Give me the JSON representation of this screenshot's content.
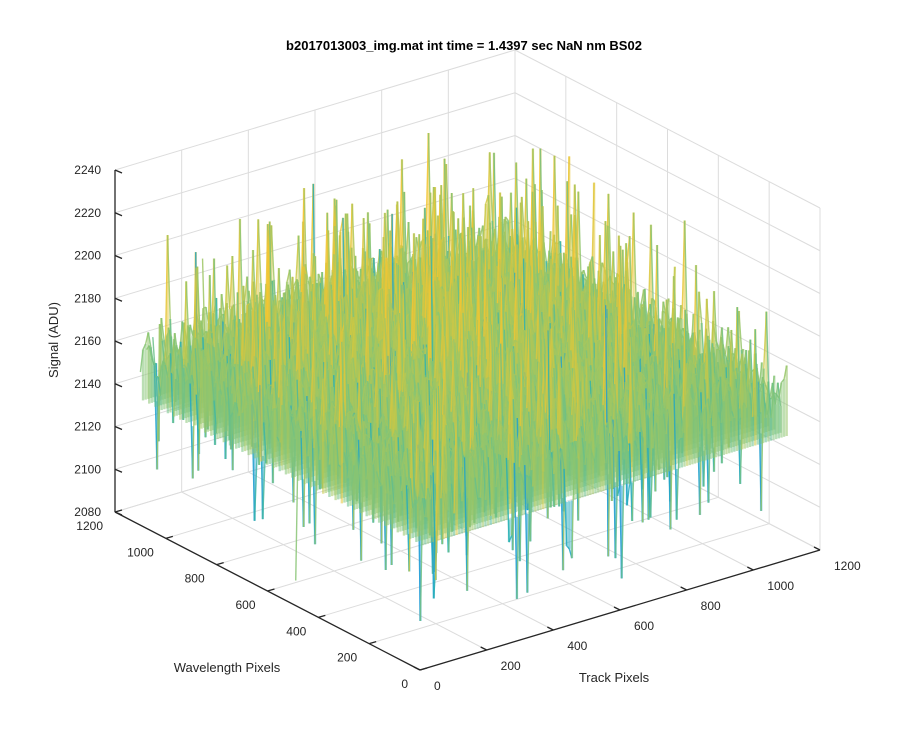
{
  "chart_data": {
    "type": "surface",
    "title": "b2017013003_img.mat int time = 1.4397 sec  NaN nm BS02",
    "xlabel": "Track Pixels",
    "ylabel": "Wavelength Pixels",
    "zlabel": "Signal (ADU)",
    "xlim": [
      0,
      1200
    ],
    "ylim": [
      0,
      1200
    ],
    "zlim": [
      2080,
      2240
    ],
    "x_ticks": [
      "0",
      "200",
      "400",
      "600",
      "800",
      "1000",
      "1200"
    ],
    "y_ticks": [
      "0",
      "200",
      "400",
      "600",
      "800",
      "1000",
      "1200"
    ],
    "z_ticks": [
      "2080",
      "2100",
      "2120",
      "2140",
      "2160",
      "2180",
      "2200",
      "2220",
      "2240"
    ],
    "grid": true,
    "colormap": "parula",
    "surface_extent": {
      "x_range": [
        0,
        1100
      ],
      "y_range": [
        0,
        1100
      ],
      "mean_signal": 2160,
      "noise_low": 2095,
      "noise_high": 2225
    },
    "colors": {
      "low": "#1e9bd6",
      "mid": "#7fc47a",
      "high": "#f5c531"
    }
  }
}
